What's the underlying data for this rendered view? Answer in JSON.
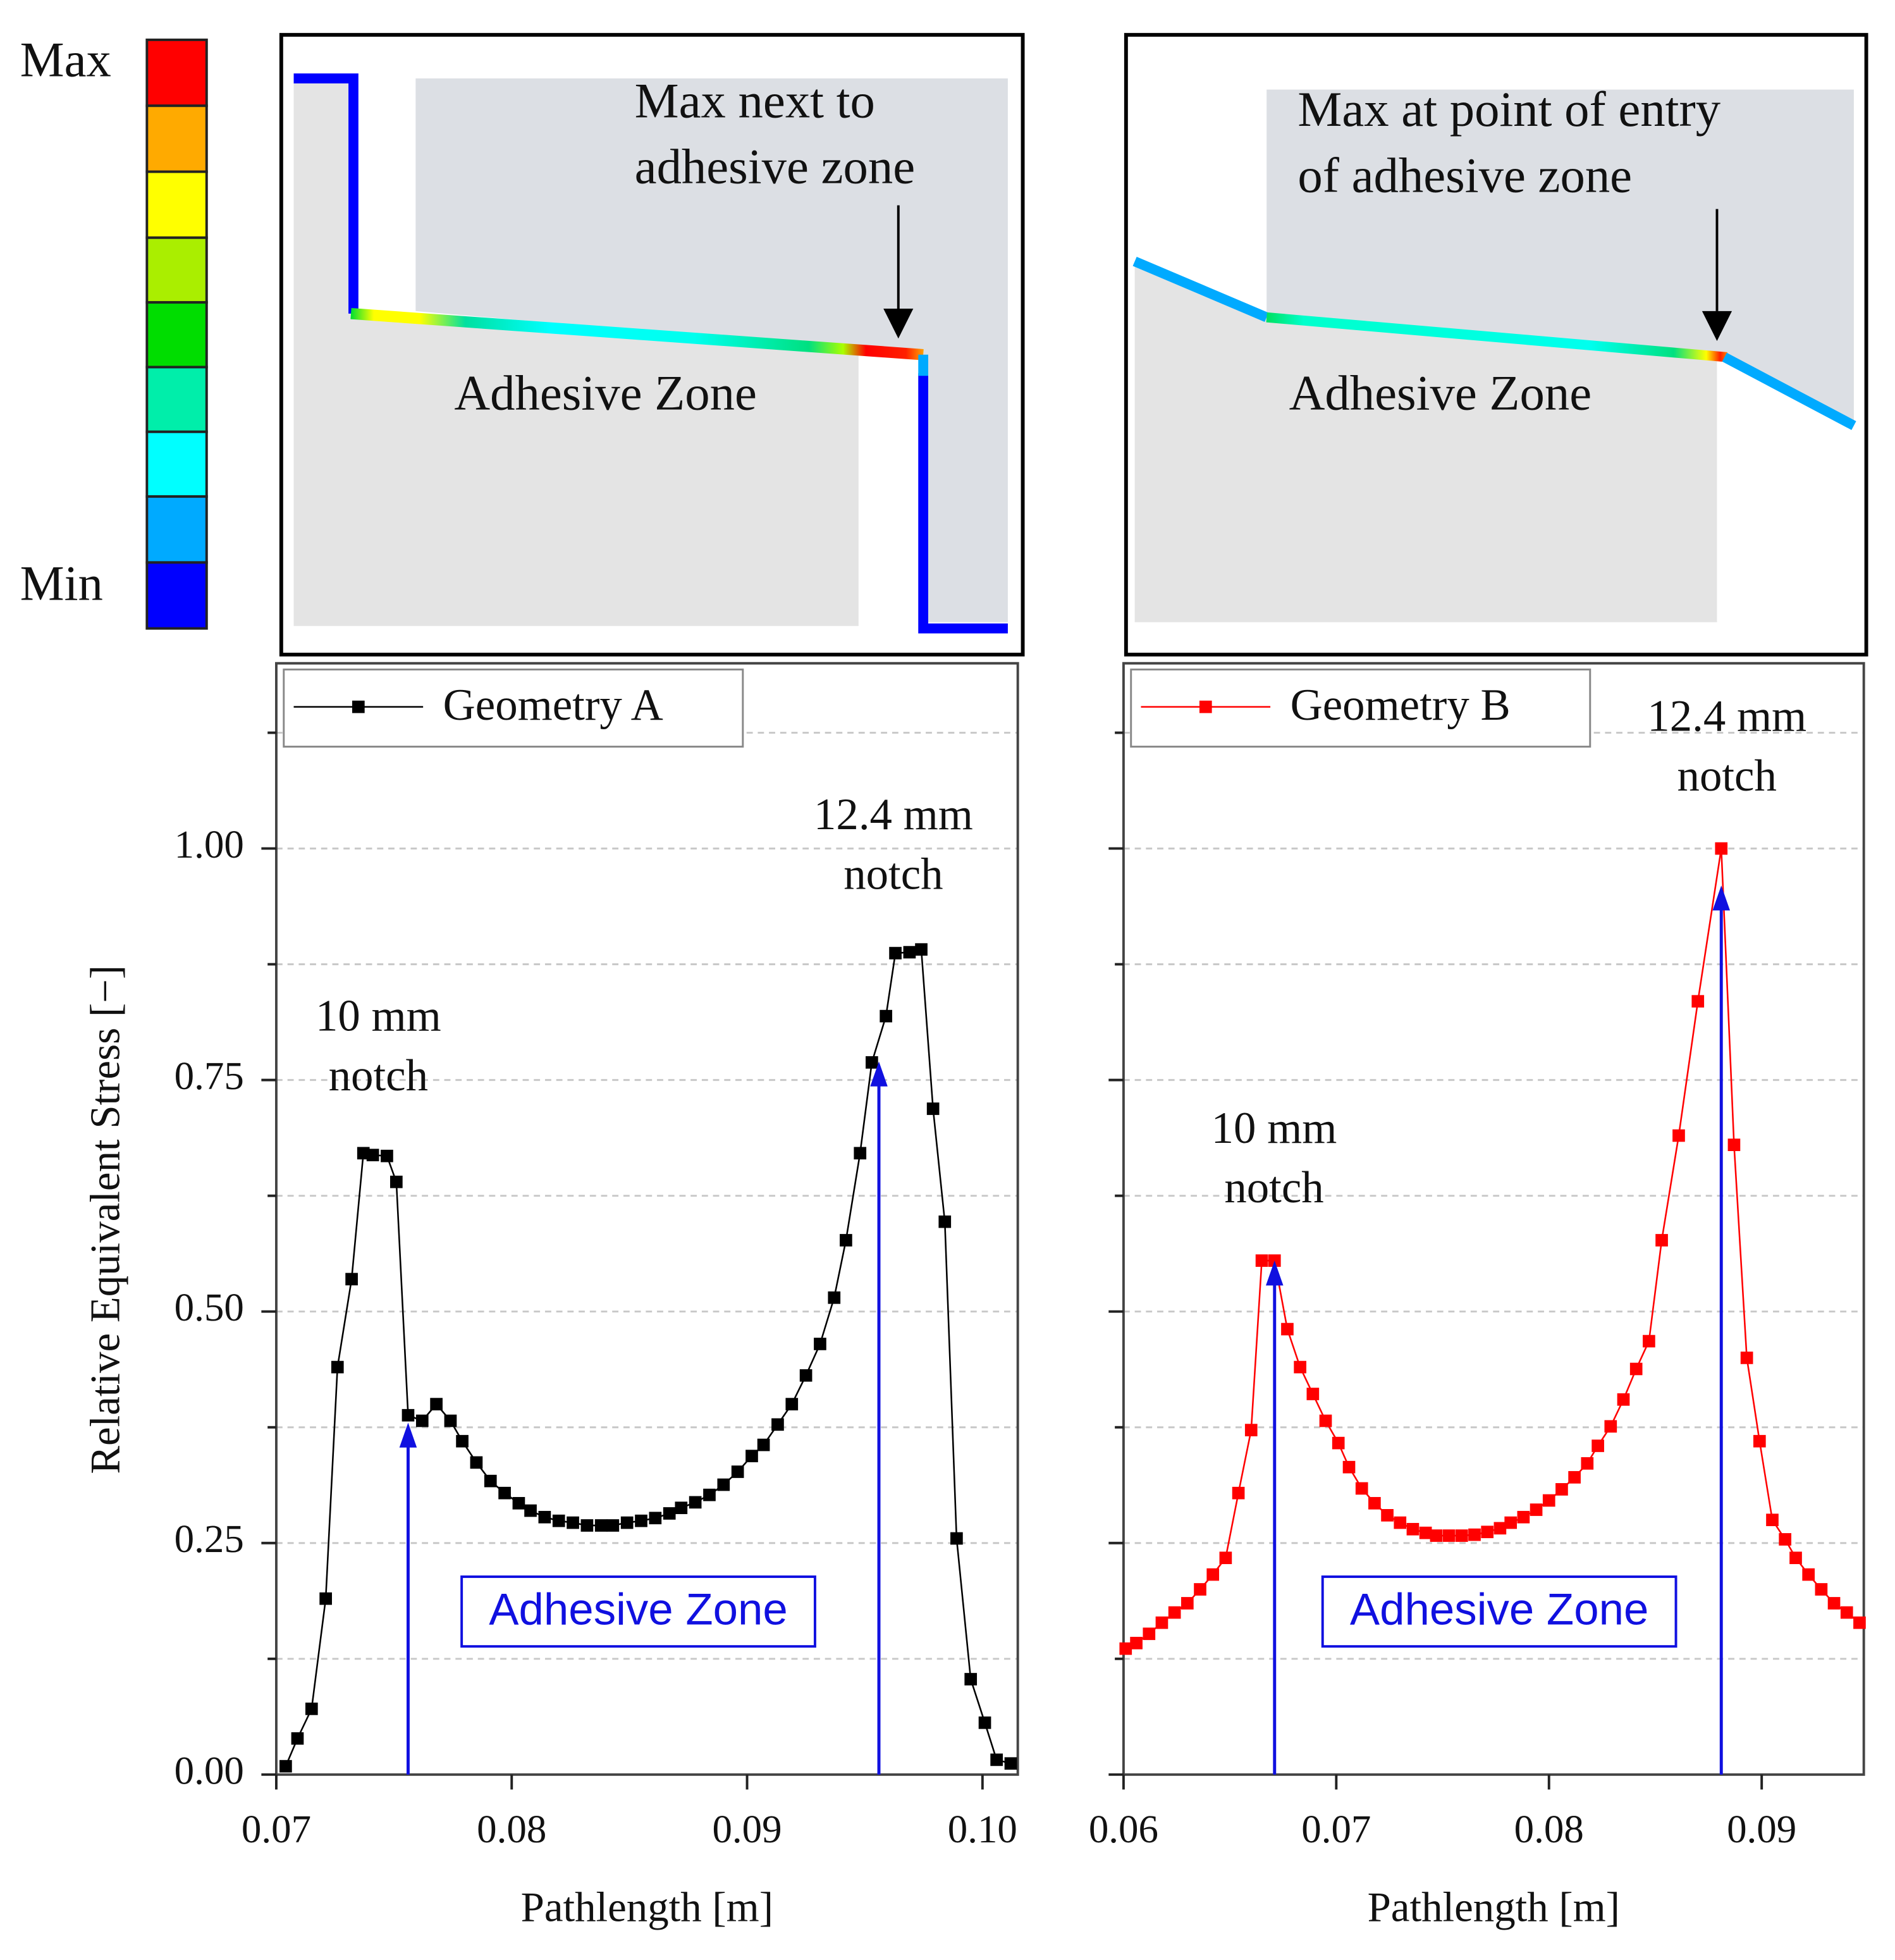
{
  "colorbar": {
    "max": "Max",
    "min": "Min"
  },
  "panels": [
    {
      "note": [
        "Max next to",
        "adhesive zone"
      ],
      "zone": "Adhesive Zone"
    },
    {
      "note": [
        "Max at point of entry",
        "of adhesive zone"
      ],
      "zone": "Adhesive Zone"
    }
  ],
  "chart_data": [
    {
      "type": "line",
      "xlabel": "Pathlength [m]",
      "ylabel": "Relative Equivalent Stress [−]",
      "xlim": [
        0.07,
        0.1015
      ],
      "ylim": [
        0,
        1.2
      ],
      "xticks": [
        0.07,
        0.08,
        0.09,
        {
          "value": 0.1,
          "label": "0.10"
        }
      ],
      "yticks": [
        {
          "value": 0,
          "label": "0.00"
        },
        {
          "value": 0.25,
          "label": "0.25"
        },
        {
          "value": 0.5,
          "label": "0.50"
        },
        {
          "value": 0.75,
          "label": "0.75"
        },
        {
          "value": 1,
          "label": "1.00"
        }
      ],
      "yminorticks": [
        0.125,
        0.375,
        0.625,
        0.875,
        1.125
      ],
      "grid": true,
      "legend": "upper left",
      "x": [
        0.0704,
        0.0709,
        0.0715,
        0.0721,
        0.0726,
        0.0732,
        0.0737,
        0.0741,
        0.0747,
        0.0751,
        0.0756,
        0.0762,
        0.0768,
        0.0774,
        0.0779,
        0.0785,
        0.0791,
        0.0797,
        0.0803,
        0.0808,
        0.0814,
        0.082,
        0.0826,
        0.0832,
        0.0838,
        0.0843,
        0.0849,
        0.0855,
        0.0861,
        0.0867,
        0.0872,
        0.0878,
        0.0884,
        0.089,
        0.0896,
        0.0902,
        0.0907,
        0.0913,
        0.0919,
        0.0925,
        0.0931,
        0.0937,
        0.0942,
        0.0948,
        0.0953,
        0.0959,
        0.0963,
        0.0969,
        0.0974,
        0.0979,
        0.0984,
        0.0989,
        0.0995,
        0.1001,
        0.1006,
        0.1012
      ],
      "series": [
        {
          "name": "Geometry A",
          "color": "#000000",
          "values": [
            0.009,
            0.039,
            0.071,
            0.19,
            0.44,
            0.535,
            0.671,
            0.669,
            0.668,
            0.64,
            0.388,
            0.382,
            0.4,
            0.382,
            0.36,
            0.337,
            0.317,
            0.304,
            0.293,
            0.285,
            0.278,
            0.274,
            0.272,
            0.269,
            0.269,
            0.269,
            0.272,
            0.274,
            0.277,
            0.282,
            0.288,
            0.294,
            0.302,
            0.313,
            0.327,
            0.344,
            0.356,
            0.378,
            0.4,
            0.431,
            0.465,
            0.515,
            0.577,
            0.671,
            0.769,
            0.819,
            0.887,
            0.888,
            0.891,
            0.719,
            0.597,
            0.255,
            0.103,
            0.056,
            0.016,
            0.012
          ]
        }
      ],
      "arrows": [
        {
          "x": 0.0756,
          "y": 0.38
        },
        {
          "x": 0.0956,
          "y": 0.77
        }
      ],
      "arrow_color": "#1010e0",
      "annotations": [
        [
          "10 mm",
          "notch"
        ],
        [
          "12.4 mm",
          "notch"
        ]
      ],
      "zone_label": "Adhesive Zone"
    },
    {
      "type": "line",
      "xlabel": "Pathlength [m]",
      "xlim": [
        0.06,
        0.0948
      ],
      "ylim": [
        0,
        1.2
      ],
      "xticks": [
        0.06,
        0.07,
        0.08,
        0.09
      ],
      "yticks": [
        0,
        0.25,
        0.5,
        0.75,
        1
      ],
      "ytick_labels": false,
      "yminorticks": [
        0.125,
        0.375,
        0.625,
        0.875,
        1.125
      ],
      "grid": true,
      "legend": "upper left",
      "x": [
        0.0601,
        0.0606,
        0.0612,
        0.0618,
        0.0624,
        0.063,
        0.0636,
        0.0642,
        0.0648,
        0.0654,
        0.066,
        0.0665,
        0.0671,
        0.0677,
        0.0683,
        0.0689,
        0.0695,
        0.0701,
        0.0706,
        0.0712,
        0.0718,
        0.0724,
        0.073,
        0.0736,
        0.0742,
        0.0747,
        0.0753,
        0.0759,
        0.0765,
        0.0771,
        0.0777,
        0.0782,
        0.0788,
        0.0794,
        0.08,
        0.0806,
        0.0812,
        0.0818,
        0.0823,
        0.0829,
        0.0835,
        0.0841,
        0.0847,
        0.0853,
        0.0861,
        0.087,
        0.0881,
        0.0887,
        0.0893,
        0.0899,
        0.0905,
        0.0911,
        0.0916,
        0.0922,
        0.0928,
        0.0934,
        0.094,
        0.0946
      ],
      "series": [
        {
          "name": "Geometry B",
          "color": "#ff0000",
          "values": [
            0.136,
            0.142,
            0.152,
            0.164,
            0.175,
            0.185,
            0.2,
            0.216,
            0.234,
            0.304,
            0.372,
            0.555,
            0.555,
            0.481,
            0.44,
            0.411,
            0.382,
            0.358,
            0.332,
            0.309,
            0.293,
            0.28,
            0.272,
            0.265,
            0.261,
            0.258,
            0.258,
            0.258,
            0.259,
            0.262,
            0.266,
            0.272,
            0.278,
            0.286,
            0.296,
            0.308,
            0.321,
            0.336,
            0.355,
            0.376,
            0.405,
            0.438,
            0.468,
            0.577,
            0.69,
            0.835,
            1.0,
            0.68,
            0.45,
            0.36,
            0.275,
            0.254,
            0.234,
            0.216,
            0.2,
            0.185,
            0.175,
            0.164
          ]
        }
      ],
      "arrows": [
        {
          "x": 0.0671,
          "y": 0.555
        },
        {
          "x": 0.0881,
          "y": 0.96
        }
      ],
      "arrow_color": "#1010e0",
      "annotations": [
        [
          "10 mm",
          "notch"
        ],
        [
          "12.4 mm",
          "notch"
        ]
      ],
      "zone_label": "Adhesive Zone"
    }
  ]
}
